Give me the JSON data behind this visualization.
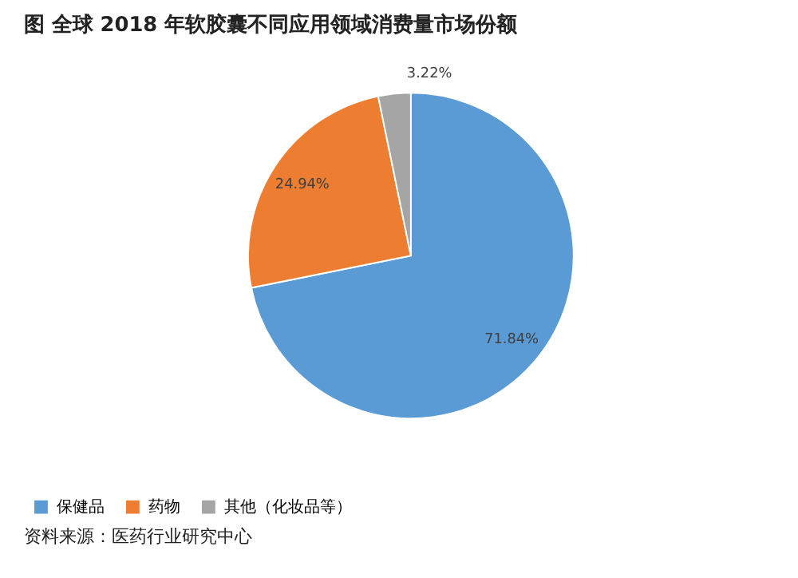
{
  "chart_data": {
    "type": "pie",
    "title": "图  全球 2018 年软胶囊不同应用领域消费量市场份额",
    "categories": [
      "保健品",
      "药物",
      "其他（化妆品等）"
    ],
    "values": [
      71.84,
      24.94,
      3.22
    ],
    "colors": [
      "#5b9bd5",
      "#ed7d31",
      "#a5a5a5"
    ],
    "value_labels": [
      "71.84%",
      "24.94%",
      "3.22%"
    ],
    "legend": "bottom",
    "annotations": [
      "资料来源：医药行业研究中心"
    ]
  }
}
